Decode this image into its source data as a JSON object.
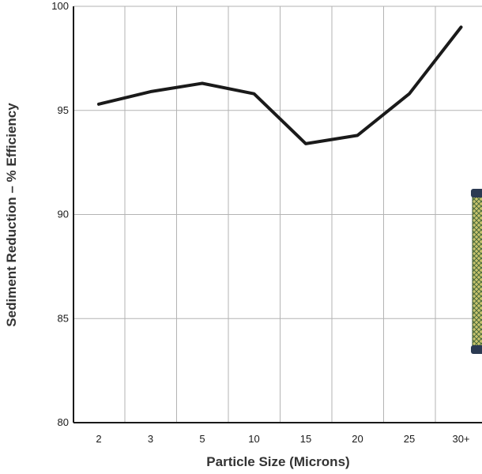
{
  "chart_data": {
    "type": "line",
    "title": "",
    "xlabel": "Particle Size (Microns)",
    "ylabel": "Sediment Reduction – % Efficiency",
    "categories": [
      "2",
      "3",
      "5",
      "10",
      "15",
      "20",
      "25",
      "30+"
    ],
    "series": [
      {
        "values": [
          95.3,
          95.9,
          96.3,
          95.8,
          93.4,
          93.8,
          95.8,
          99.0
        ]
      }
    ],
    "ylim": [
      80,
      100
    ],
    "yticks": [
      "80",
      "85",
      "90",
      "95",
      "100"
    ],
    "grid": true,
    "legend": "none",
    "colors": {
      "line": "#1a1a1a",
      "grid": "#b3b3b3",
      "axis": "#1a1a1a",
      "filter_body": "#c9c46a",
      "filter_cap": "#2b3a52"
    },
    "image_icon": "water-filter-cartridge-icon"
  }
}
